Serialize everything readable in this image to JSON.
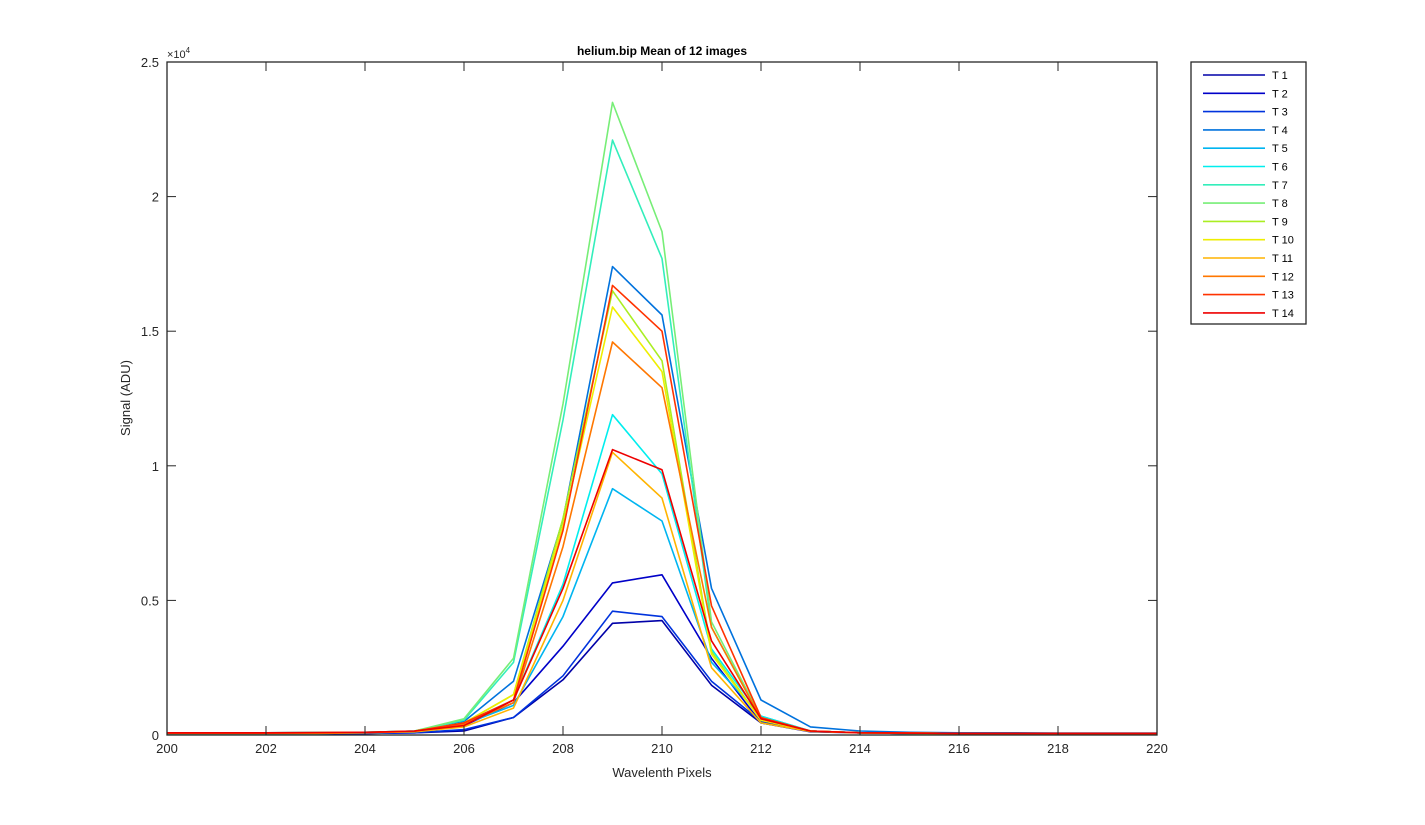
{
  "chart_data": {
    "type": "line",
    "title": "helium.bip  Mean of 12 images",
    "xlabel": "Wavelenth Pixels",
    "ylabel": "Signal (ADU)",
    "y_exponent_label": "×10",
    "y_exponent_power": "4",
    "xlim": [
      200,
      220
    ],
    "ylim": [
      0,
      25000
    ],
    "x_ticks": [
      200,
      202,
      204,
      206,
      208,
      210,
      212,
      214,
      216,
      218,
      220
    ],
    "x_tick_labels": [
      "200",
      "202",
      "204",
      "206",
      "208",
      "210",
      "212",
      "214",
      "216",
      "218",
      "220"
    ],
    "y_ticks": [
      0,
      5000,
      10000,
      15000,
      20000,
      25000
    ],
    "y_tick_labels": [
      "0",
      "0.5",
      "1",
      "1.5",
      "2",
      "2.5"
    ],
    "grid": false,
    "legend_position": "outside-right-top",
    "x": [
      200,
      201,
      202,
      203,
      204,
      205,
      206,
      207,
      208,
      209,
      210,
      211,
      212,
      213,
      214,
      215,
      216,
      217,
      218,
      219,
      220
    ],
    "series": [
      {
        "name": "T 1",
        "color": "#0000a8",
        "values": [
          50,
          50,
          50,
          50,
          60,
          80,
          150,
          650,
          2050,
          4150,
          4250,
          1850,
          450,
          150,
          80,
          60,
          50,
          50,
          50,
          50,
          50
        ]
      },
      {
        "name": "T 2",
        "color": "#0000c8",
        "values": [
          50,
          50,
          50,
          50,
          60,
          100,
          350,
          1200,
          3300,
          5650,
          5950,
          2850,
          450,
          120,
          80,
          60,
          50,
          50,
          50,
          50,
          50
        ]
      },
      {
        "name": "T 3",
        "color": "#0033dd",
        "values": [
          50,
          50,
          50,
          50,
          60,
          80,
          200,
          650,
          2200,
          4600,
          4400,
          2000,
          500,
          150,
          80,
          60,
          50,
          50,
          50,
          50,
          50
        ]
      },
      {
        "name": "T 4",
        "color": "#0072dd",
        "values": [
          80,
          80,
          80,
          90,
          100,
          150,
          500,
          2000,
          8000,
          17400,
          15600,
          5450,
          1300,
          300,
          150,
          100,
          80,
          80,
          70,
          70,
          70
        ]
      },
      {
        "name": "T 5",
        "color": "#00b5f0",
        "values": [
          60,
          60,
          60,
          60,
          80,
          120,
          400,
          1100,
          4400,
          9150,
          7950,
          2700,
          700,
          150,
          80,
          60,
          50,
          50,
          50,
          50,
          50
        ]
      },
      {
        "name": "T 6",
        "color": "#00eeee",
        "values": [
          60,
          60,
          60,
          60,
          80,
          130,
          450,
          1300,
          5600,
          11900,
          9700,
          3200,
          700,
          150,
          80,
          60,
          50,
          50,
          50,
          50,
          50
        ]
      },
      {
        "name": "T 7",
        "color": "#33eebb",
        "values": [
          80,
          80,
          80,
          90,
          100,
          150,
          550,
          2700,
          11700,
          22100,
          17700,
          4000,
          600,
          150,
          80,
          70,
          60,
          60,
          60,
          60,
          60
        ]
      },
      {
        "name": "T 8",
        "color": "#77ee77",
        "values": [
          80,
          80,
          80,
          90,
          100,
          150,
          600,
          2850,
          12300,
          23500,
          18700,
          4200,
          650,
          150,
          80,
          70,
          60,
          60,
          60,
          60,
          60
        ]
      },
      {
        "name": "T 9",
        "color": "#aaee22",
        "values": [
          70,
          70,
          70,
          80,
          90,
          140,
          450,
          1500,
          8050,
          16500,
          13900,
          3100,
          550,
          150,
          80,
          70,
          60,
          60,
          60,
          60,
          60
        ]
      },
      {
        "name": "T 10",
        "color": "#eeee00",
        "values": [
          70,
          70,
          70,
          80,
          90,
          140,
          450,
          1500,
          7800,
          15900,
          13500,
          3000,
          550,
          150,
          80,
          70,
          60,
          60,
          60,
          60,
          60
        ]
      },
      {
        "name": "T 11",
        "color": "#ffb400",
        "values": [
          60,
          60,
          60,
          60,
          80,
          120,
          300,
          1000,
          5000,
          10500,
          8800,
          2500,
          450,
          130,
          80,
          60,
          50,
          50,
          50,
          50,
          50
        ]
      },
      {
        "name": "T 12",
        "color": "#ff7700",
        "values": [
          70,
          70,
          70,
          80,
          90,
          140,
          400,
          1200,
          7000,
          14600,
          12900,
          4000,
          600,
          150,
          80,
          70,
          60,
          60,
          60,
          60,
          60
        ]
      },
      {
        "name": "T 13",
        "color": "#ff3300",
        "values": [
          70,
          70,
          70,
          80,
          90,
          140,
          450,
          1300,
          7600,
          16700,
          15000,
          4800,
          650,
          150,
          80,
          70,
          60,
          60,
          60,
          60,
          60
        ]
      },
      {
        "name": "T 14",
        "color": "#ee0000",
        "values": [
          80,
          80,
          80,
          90,
          100,
          150,
          350,
          1300,
          5450,
          10600,
          9850,
          3500,
          600,
          150,
          80,
          70,
          60,
          60,
          60,
          60,
          60
        ]
      }
    ]
  }
}
